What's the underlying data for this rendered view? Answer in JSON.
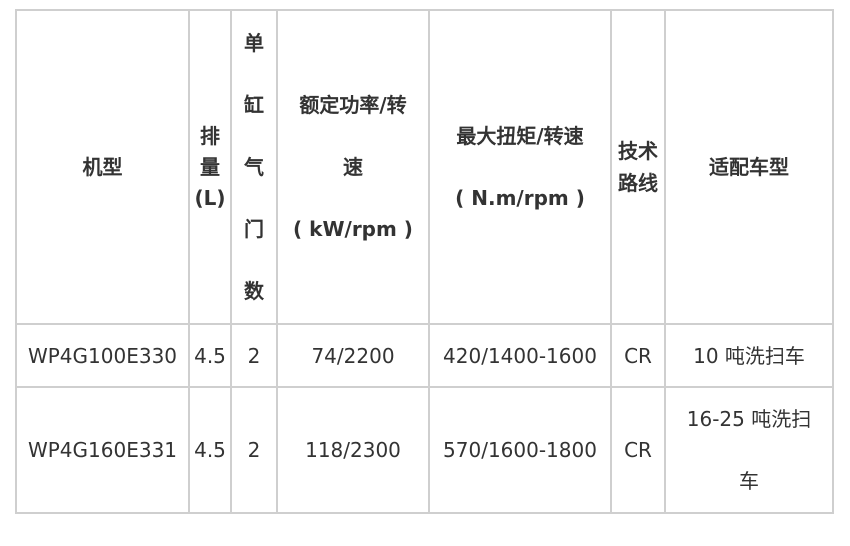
{
  "table": {
    "headers": [
      {
        "lines": [
          "机型"
        ]
      },
      {
        "lines": [
          "排",
          "量",
          "(L)"
        ]
      },
      {
        "lines": [
          "单",
          "缸",
          "气",
          "门",
          "数"
        ]
      },
      {
        "lines": [
          "额定功率/转",
          "速",
          "( kW/rpm )"
        ]
      },
      {
        "lines": [
          "最大扭矩/转速",
          "( N.m/rpm )"
        ]
      },
      {
        "lines": [
          "技术",
          "路线"
        ]
      },
      {
        "lines": [
          "适配车型"
        ]
      }
    ],
    "rows": [
      {
        "model": "WP4G100E330",
        "displacement": "4.5",
        "valves": "2",
        "power": "74/2200",
        "torque": "420/1400-1600",
        "tech": "CR",
        "vehicle_lines": [
          "10 吨洗扫车"
        ]
      },
      {
        "model": "WP4G160E331",
        "displacement": "4.5",
        "valves": "2",
        "power": "118/2300",
        "torque": "570/1600-1800",
        "tech": "CR",
        "vehicle_lines": [
          "16-25 吨洗扫",
          "车"
        ]
      }
    ]
  }
}
